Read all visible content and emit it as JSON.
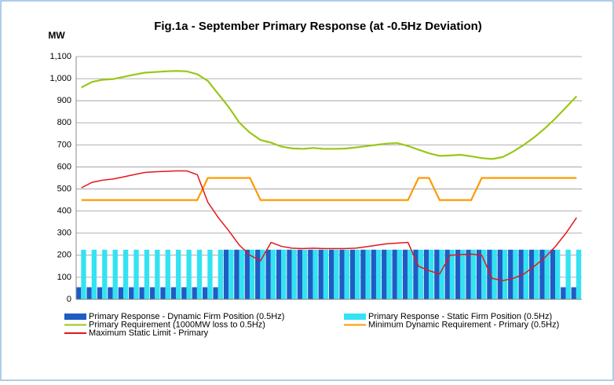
{
  "chart_data": {
    "type": "bar-line",
    "title": "Fig.1a - September Primary Response (at -0.5Hz Deviation)",
    "y_label": "MW",
    "categories": [
      null,
      null,
      null,
      null,
      null,
      null,
      null,
      null,
      null,
      null,
      null,
      null,
      null,
      null,
      null,
      null,
      null,
      null,
      null,
      null,
      null,
      null,
      null,
      null,
      null,
      null,
      null,
      null,
      null,
      null,
      null,
      null,
      null,
      null,
      null,
      null,
      null,
      null,
      null,
      null,
      null,
      null,
      null,
      null,
      null,
      null,
      null,
      null
    ],
    "ylim": [
      0,
      1100
    ],
    "yticks": [
      0,
      100,
      200,
      300,
      400,
      500,
      600,
      700,
      800,
      900,
      {
        "value": 1000,
        "label": "1,000"
      },
      {
        "value": 1100,
        "label": "1,100"
      }
    ],
    "grid": true,
    "series": [
      {
        "name": "Primary Response - Dynamic Firm Position (0.5Hz)",
        "kind": "bar",
        "color": "#1f5cc4",
        "values": [
          55,
          55,
          55,
          55,
          55,
          55,
          55,
          55,
          55,
          55,
          55,
          55,
          55,
          55,
          225,
          225,
          225,
          225,
          225,
          225,
          225,
          225,
          225,
          225,
          225,
          225,
          225,
          225,
          225,
          225,
          225,
          225,
          225,
          225,
          225,
          225,
          225,
          225,
          225,
          225,
          225,
          225,
          225,
          225,
          225,
          225,
          55,
          55
        ]
      },
      {
        "name": "Primary Response - Static Firm Position (0.5Hz)",
        "kind": "bar",
        "color": "#33e3f2",
        "values": [
          225,
          225,
          225,
          225,
          225,
          225,
          225,
          225,
          225,
          225,
          225,
          225,
          225,
          225,
          225,
          225,
          225,
          225,
          225,
          225,
          225,
          225,
          225,
          225,
          225,
          225,
          225,
          225,
          225,
          225,
          225,
          225,
          225,
          225,
          225,
          225,
          225,
          225,
          225,
          225,
          225,
          225,
          225,
          225,
          225,
          225,
          225,
          225
        ]
      },
      {
        "name": "Primary Requirement (1000MW loss to 0.5Hz)",
        "kind": "line",
        "color": "#99c717",
        "values": [
          960,
          985,
          995,
          998,
          1008,
          1018,
          1027,
          1030,
          1033,
          1035,
          1033,
          1020,
          990,
          930,
          870,
          800,
          755,
          722,
          710,
          692,
          684,
          682,
          686,
          682,
          682,
          683,
          688,
          694,
          700,
          706,
          708,
          695,
          678,
          662,
          650,
          652,
          655,
          648,
          640,
          636,
          645,
          670,
          700,
          735,
          775,
          820,
          870,
          920
        ]
      },
      {
        "name": "Minimum Dynamic Requirement - Primary  (0.5Hz)",
        "kind": "line",
        "color": "#ff9900",
        "values": [
          450,
          450,
          450,
          450,
          450,
          450,
          450,
          450,
          450,
          450,
          450,
          450,
          550,
          550,
          550,
          550,
          550,
          450,
          450,
          450,
          450,
          450,
          450,
          450,
          450,
          450,
          450,
          450,
          450,
          450,
          450,
          450,
          550,
          550,
          450,
          450,
          450,
          450,
          550,
          550,
          550,
          550,
          550,
          550,
          550,
          550,
          550,
          550
        ]
      },
      {
        "name": "Maximum Static Limit - Primary",
        "kind": "line",
        "color": "#e3161b",
        "values": [
          505,
          530,
          540,
          545,
          555,
          565,
          575,
          578,
          580,
          582,
          582,
          565,
          440,
          370,
          310,
          245,
          200,
          175,
          258,
          240,
          232,
          230,
          232,
          230,
          230,
          230,
          232,
          238,
          245,
          252,
          255,
          258,
          150,
          130,
          115,
          200,
          203,
          205,
          200,
          95,
          85,
          95,
          115,
          150,
          190,
          240,
          300,
          370
        ]
      }
    ]
  }
}
